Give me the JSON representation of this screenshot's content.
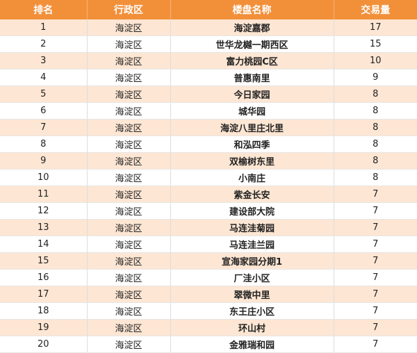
{
  "table": {
    "headers": [
      "排名",
      "行政区",
      "楼盘名称",
      "交易量"
    ],
    "rows": [
      [
        "1",
        "海淀区",
        "海淀嘉郡",
        "17"
      ],
      [
        "2",
        "海淀区",
        "世华龙樾一期西区",
        "15"
      ],
      [
        "3",
        "海淀区",
        "富力桃园C区",
        "10"
      ],
      [
        "4",
        "海淀区",
        "普惠南里",
        "9"
      ],
      [
        "5",
        "海淀区",
        "今日家园",
        "8"
      ],
      [
        "6",
        "海淀区",
        "城华园",
        "8"
      ],
      [
        "7",
        "海淀区",
        "海淀八里庄北里",
        "8"
      ],
      [
        "8",
        "海淀区",
        "和泓四季",
        "8"
      ],
      [
        "9",
        "海淀区",
        "双榆树东里",
        "8"
      ],
      [
        "10",
        "海淀区",
        "小南庄",
        "8"
      ],
      [
        "11",
        "海淀区",
        "紫金长安",
        "7"
      ],
      [
        "12",
        "海淀区",
        "建设部大院",
        "7"
      ],
      [
        "13",
        "海淀区",
        "马连洼菊园",
        "7"
      ],
      [
        "14",
        "海淀区",
        "马连洼兰园",
        "7"
      ],
      [
        "15",
        "海淀区",
        "宣海家园分期1",
        "7"
      ],
      [
        "16",
        "海淀区",
        "厂洼小区",
        "7"
      ],
      [
        "17",
        "海淀区",
        "翠微中里",
        "7"
      ],
      [
        "18",
        "海淀区",
        "东王庄小区",
        "7"
      ],
      [
        "19",
        "海淀区",
        "环山村",
        "7"
      ],
      [
        "20",
        "海淀区",
        "金雅瑞和园",
        "7"
      ]
    ]
  },
  "colors": {
    "header_bg": "#f2903a",
    "row_odd_bg": "#fde6d3",
    "row_even_bg": "#ffffff"
  }
}
